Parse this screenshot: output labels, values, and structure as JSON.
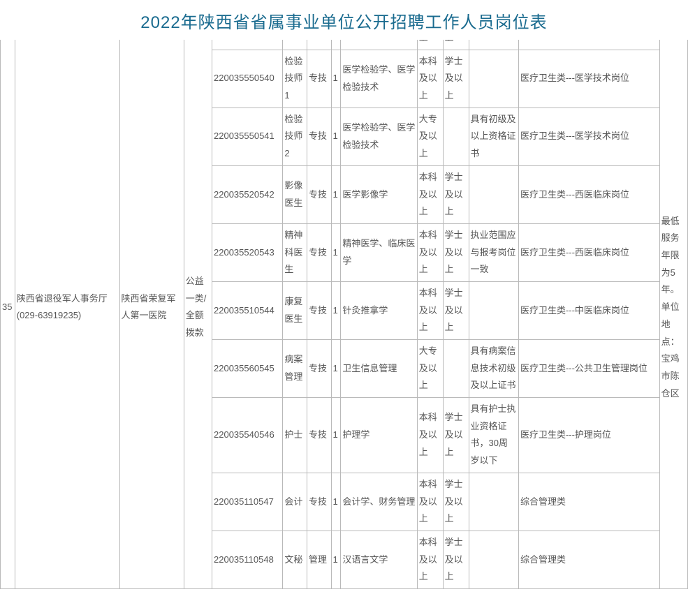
{
  "title": "2022年陕西省省属事业单位公开招聘工作人员岗位表",
  "colors": {
    "title_color": "#1a6b8f",
    "text_color": "#555555",
    "border_color": "#b9b9b9",
    "background": "#ffffff"
  },
  "typography": {
    "title_fontsize": 24,
    "body_fontsize": 13,
    "line_height": 1.9
  },
  "index": "35",
  "department": "陕西省退役军人事务厅 (029-63919235)",
  "organization": "陕西省荣复军人第一医院",
  "funding_type": "公益一类/全额拨款",
  "remark": "最低服务年限为5年。单位地点：宝鸡市陈仓区",
  "partial_top": {
    "edu": "上",
    "degree": "上"
  },
  "rows": [
    {
      "code": "220035550540",
      "post": "检验技师1",
      "type": "专技",
      "count": "1",
      "spec": "医学检验学、医学检验技术",
      "edu": "本科及以上",
      "degree": "学士及以上",
      "req": "",
      "category": "医疗卫生类---医学技术岗位"
    },
    {
      "code": "220035550541",
      "post": "检验技师2",
      "type": "专技",
      "count": "1",
      "spec": "医学检验学、医学检验技术",
      "edu": "大专及以上",
      "degree": "",
      "req": "具有初级及以上资格证书",
      "category": "医疗卫生类---医学技术岗位"
    },
    {
      "code": "220035520542",
      "post": "影像医生",
      "type": "专技",
      "count": "1",
      "spec": "医学影像学",
      "edu": "本科及以上",
      "degree": "学士及以上",
      "req": "",
      "category": "医疗卫生类---西医临床岗位"
    },
    {
      "code": "220035520543",
      "post": "精神科医生",
      "type": "专技",
      "count": "1",
      "spec": "精神医学、临床医学",
      "edu": "本科及以上",
      "degree": "学士及以上",
      "req": "执业范围应与报考岗位一致",
      "category": "医疗卫生类---西医临床岗位"
    },
    {
      "code": "220035510544",
      "post": "康复医生",
      "type": "专技",
      "count": "1",
      "spec": "针灸推拿学",
      "edu": "本科及以上",
      "degree": "学士及以上",
      "req": "",
      "category": "医疗卫生类---中医临床岗位"
    },
    {
      "code": "220035560545",
      "post": "病案管理",
      "type": "专技",
      "count": "1",
      "spec": "卫生信息管理",
      "edu": "大专及以上",
      "degree": "",
      "req": "具有病案信息技术初级及以上证书",
      "category": "医疗卫生类---公共卫生管理岗位"
    },
    {
      "code": "220035540546",
      "post": "护士",
      "type": "专技",
      "count": "1",
      "spec": "护理学",
      "edu": "本科及以上",
      "degree": "学士及以上",
      "req": "具有护士执业资格证书，30周岁以下",
      "category": "医疗卫生类---护理岗位"
    },
    {
      "code": "220035110547",
      "post": "会计",
      "type": "专技",
      "count": "1",
      "spec": "会计学、财务管理",
      "edu": "本科及以上",
      "degree": "学士及以上",
      "req": "",
      "category": "综合管理类"
    },
    {
      "code": "220035110548",
      "post": "文秘",
      "type": "管理",
      "count": "1",
      "spec": "汉语言文学",
      "edu": "本科及以上",
      "degree": "学士及以上",
      "req": "",
      "category": "综合管理类"
    }
  ]
}
